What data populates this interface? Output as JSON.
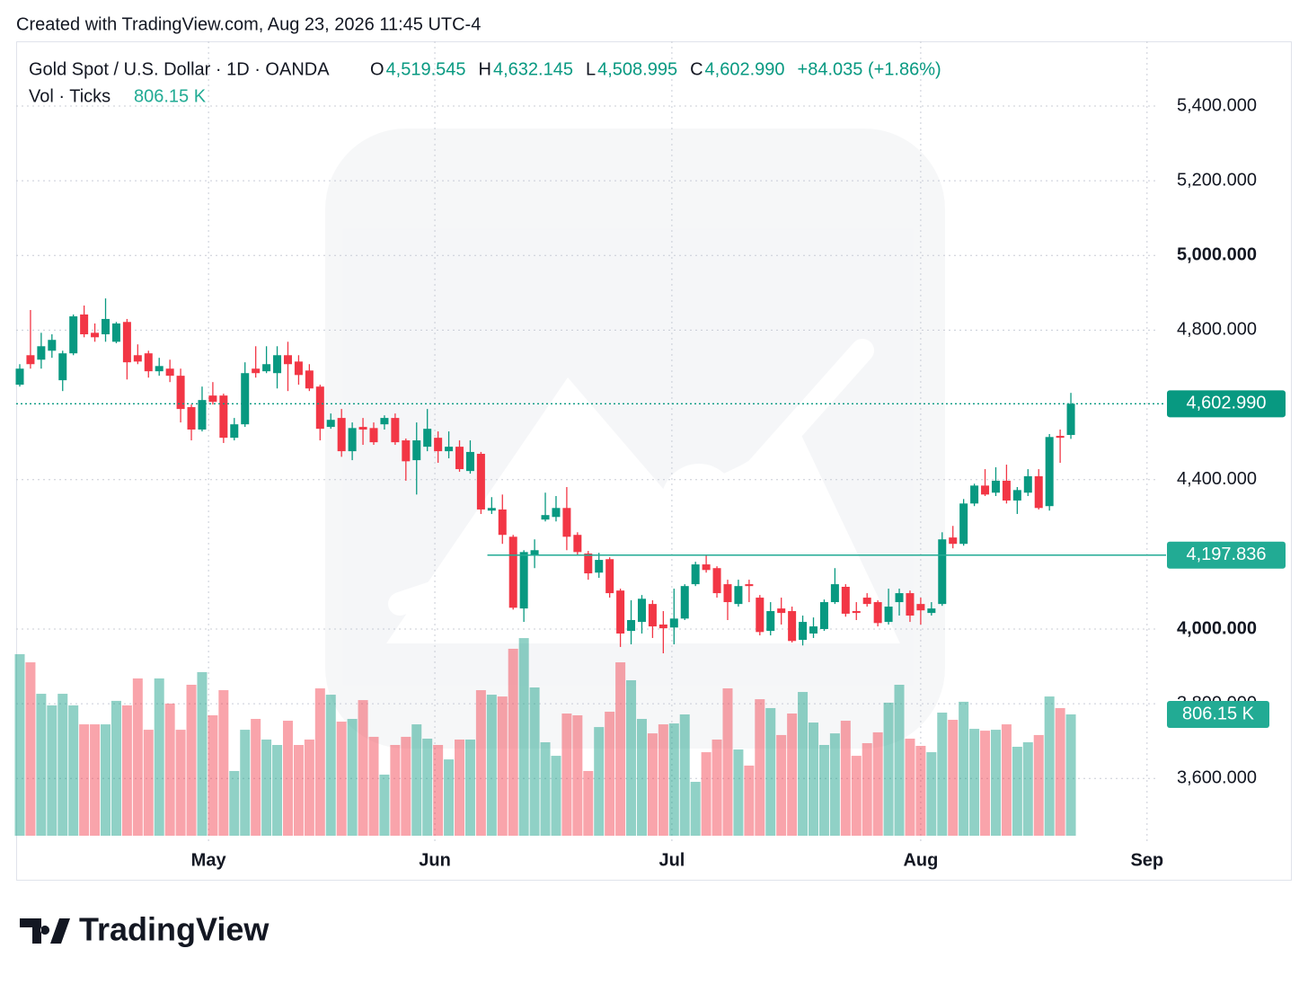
{
  "header": {
    "credit": "Created with TradingView.com, Aug 23, 2026 11:45 UTC-4",
    "logo": "TradingView"
  },
  "chart_data": {
    "type": "candlestick",
    "legend": {
      "symbol": "Gold Spot / U.S. Dollar · 1D · OANDA",
      "ohlc": [
        {
          "key": "O",
          "value": "4,519.545"
        },
        {
          "key": "H",
          "value": "4,632.145"
        },
        {
          "key": "L",
          "value": "4,508.995"
        },
        {
          "key": "C",
          "value": "4,602.990"
        }
      ],
      "change": "+84.035 (+1.86%)",
      "volume_name": "Vol · Ticks",
      "volume_value": "806.15 K"
    },
    "colors": {
      "up": "#089981",
      "down": "#f23645"
    },
    "open": [
      4654,
      4733,
      4721,
      4745,
      4666,
      4738,
      4842,
      4793,
      4789,
      4769,
      4822,
      4733,
      4738,
      4690,
      4697,
      4678,
      4594,
      4534,
      4625,
      4625,
      4512,
      4548,
      4697,
      4690,
      4685,
      4733,
      4716,
      4692,
      4649,
      4541,
      4565,
      4476,
      4541,
      4538,
      4548,
      4565,
      4505,
      4452,
      4488,
      4512,
      4476,
      4488,
      4423,
      4469,
      4317,
      4320,
      4247,
      4055,
      4199,
      4293,
      4300,
      4324,
      4252,
      4202,
      4151,
      4187,
      4103,
      3995,
      4019,
      4067,
      4012,
      4004,
      4028,
      4120,
      4173,
      4163,
      4120,
      4067,
      4120,
      4084,
      3995,
      4055,
      4048,
      3971,
      3988,
      4000,
      4072,
      4113,
      4048,
      4084,
      4072,
      4019,
      4072,
      4096,
      4067,
      4043,
      4067,
      4245,
      4228,
      4336,
      4384,
      4365,
      4397,
      4344,
      4365,
      4409,
      4329,
      4517,
      4519.545
    ],
    "high": [
      4709,
      4854,
      4793,
      4789,
      4745,
      4842,
      4866,
      4818,
      4885,
      4822,
      4830,
      4762,
      4745,
      4726,
      4721,
      4697,
      4601,
      4649,
      4661,
      4630,
      4565,
      4714,
      4757,
      4757,
      4757,
      4769,
      4733,
      4709,
      4654,
      4577,
      4589,
      4553,
      4565,
      4553,
      4572,
      4577,
      4510,
      4553,
      4589,
      4529,
      4529,
      4505,
      4505,
      4474,
      4353,
      4360,
      4252,
      4211,
      4240,
      4365,
      4356,
      4380,
      4259,
      4209,
      4204,
      4192,
      4108,
      4077,
      4091,
      4077,
      4048,
      4108,
      4120,
      4180,
      4197,
      4168,
      4132,
      4132,
      4132,
      4091,
      4072,
      4084,
      4060,
      4036,
      4031,
      4079,
      4163,
      4120,
      4072,
      4096,
      4077,
      4108,
      4108,
      4103,
      4084,
      4072,
      4259,
      4276,
      4348,
      4389,
      4428,
      4433,
      4440,
      4380,
      4428,
      4428,
      4522,
      4534,
      4632.145
    ],
    "low": [
      4649,
      4697,
      4697,
      4726,
      4637,
      4733,
      4781,
      4769,
      4769,
      4765,
      4668,
      4709,
      4673,
      4678,
      4661,
      4553,
      4505,
      4529,
      4601,
      4498,
      4505,
      4541,
      4673,
      4685,
      4644,
      4637,
      4654,
      4637,
      4505,
      4536,
      4461,
      4452,
      4493,
      4493,
      4534,
      4493,
      4397,
      4360,
      4476,
      4445,
      4457,
      4421,
      4416,
      4308,
      4308,
      4228,
      4052,
      4019,
      4163,
      4288,
      4288,
      4211,
      4199,
      4132,
      4137,
      4084,
      3952,
      3959,
      3988,
      3976,
      3935,
      3959,
      4024,
      4115,
      4151,
      4084,
      4024,
      4060,
      4072,
      3983,
      3983,
      4012,
      3964,
      3956,
      3976,
      3995,
      4067,
      4033,
      4024,
      4060,
      4007,
      4012,
      4036,
      4019,
      4012,
      4036,
      4062,
      4216,
      4223,
      4329,
      4356,
      4356,
      4336,
      4308,
      4356,
      4320,
      4317,
      4445,
      4508.995
    ],
    "close": [
      4697,
      4709,
      4757,
      4774,
      4738,
      4837,
      4789,
      4781,
      4830,
      4818,
      4714,
      4716,
      4690,
      4704,
      4678,
      4589,
      4534,
      4613,
      4608,
      4512,
      4548,
      4685,
      4685,
      4709,
      4733,
      4709,
      4680,
      4644,
      4536,
      4560,
      4476,
      4538,
      4534,
      4500,
      4565,
      4500,
      4449,
      4505,
      4536,
      4476,
      4488,
      4428,
      4474,
      4320,
      4324,
      4252,
      4057,
      4206,
      4211,
      4305,
      4324,
      4247,
      4206,
      4149,
      4185,
      4096,
      3988,
      4024,
      4081,
      4007,
      4002,
      4028,
      4115,
      4173,
      4158,
      4096,
      4072,
      4115,
      4115,
      3992,
      4048,
      4043,
      3968,
      4019,
      4007,
      4072,
      4120,
      4041,
      4043,
      4067,
      4016,
      4060,
      4096,
      4036,
      4050,
      4055,
      4240,
      4228,
      4336,
      4384,
      4360,
      4397,
      4344,
      4372,
      4409,
      4324,
      4514,
      4512,
      4602.99
    ],
    "volume": [
      1206,
      1152,
      943,
      866,
      943,
      866,
      740,
      740,
      740,
      896,
      866,
      1045,
      704,
      1045,
      878,
      704,
      1003,
      1087,
      800,
      967,
      430,
      704,
      776,
      639,
      603,
      764,
      603,
      639,
      979,
      937,
      758,
      776,
      901,
      657,
      406,
      603,
      657,
      740,
      645,
      603,
      507,
      639,
      639,
      967,
      937,
      925,
      1242,
      1313,
      985,
      621,
      531,
      812,
      800,
      430,
      722,
      824,
      1152,
      1033,
      776,
      680,
      740,
      746,
      806,
      358,
      555,
      639,
      979,
      573,
      466,
      907,
      848,
      669,
      812,
      955,
      752,
      603,
      680,
      764,
      531,
      615,
      687,
      884,
      1003,
      645,
      597,
      555,
      818,
      770,
      890,
      710,
      698,
      704,
      740,
      591,
      621,
      669,
      925,
      848,
      806.15
    ],
    "volume_lim": [
      0,
      1600
    ],
    "last_price_label": "4,602.990",
    "level": {
      "value": 4197.836,
      "label": "4,197.836",
      "start": 43.6
    },
    "xlim": [
      -0.335,
      118.6
    ],
    "xticks": [
      {
        "value": 17.6,
        "label": "May"
      },
      {
        "value": 38.7,
        "label": "Jun"
      },
      {
        "value": 60.8,
        "label": "Jul"
      },
      {
        "value": 84.0,
        "label": "Aug"
      },
      {
        "value": 105.1,
        "label": "Sep"
      }
    ],
    "ylim": [
      3422.6,
      5573.2
    ],
    "yticks": [
      {
        "value": 5400,
        "label": "5,400.000"
      },
      {
        "value": 5200,
        "label": "5,200.000"
      },
      {
        "value": 5000,
        "label": "5,000.000",
        "bold": true
      },
      {
        "value": 4800,
        "label": "4,800.000"
      },
      {
        "value": 4400,
        "label": "4,400.000"
      },
      {
        "value": 4000,
        "label": "4,000.000",
        "bold": true
      },
      {
        "value": 3800,
        "label": "3,800.000"
      },
      {
        "value": 3600,
        "label": "3,600.000"
      }
    ],
    "grid": true
  }
}
